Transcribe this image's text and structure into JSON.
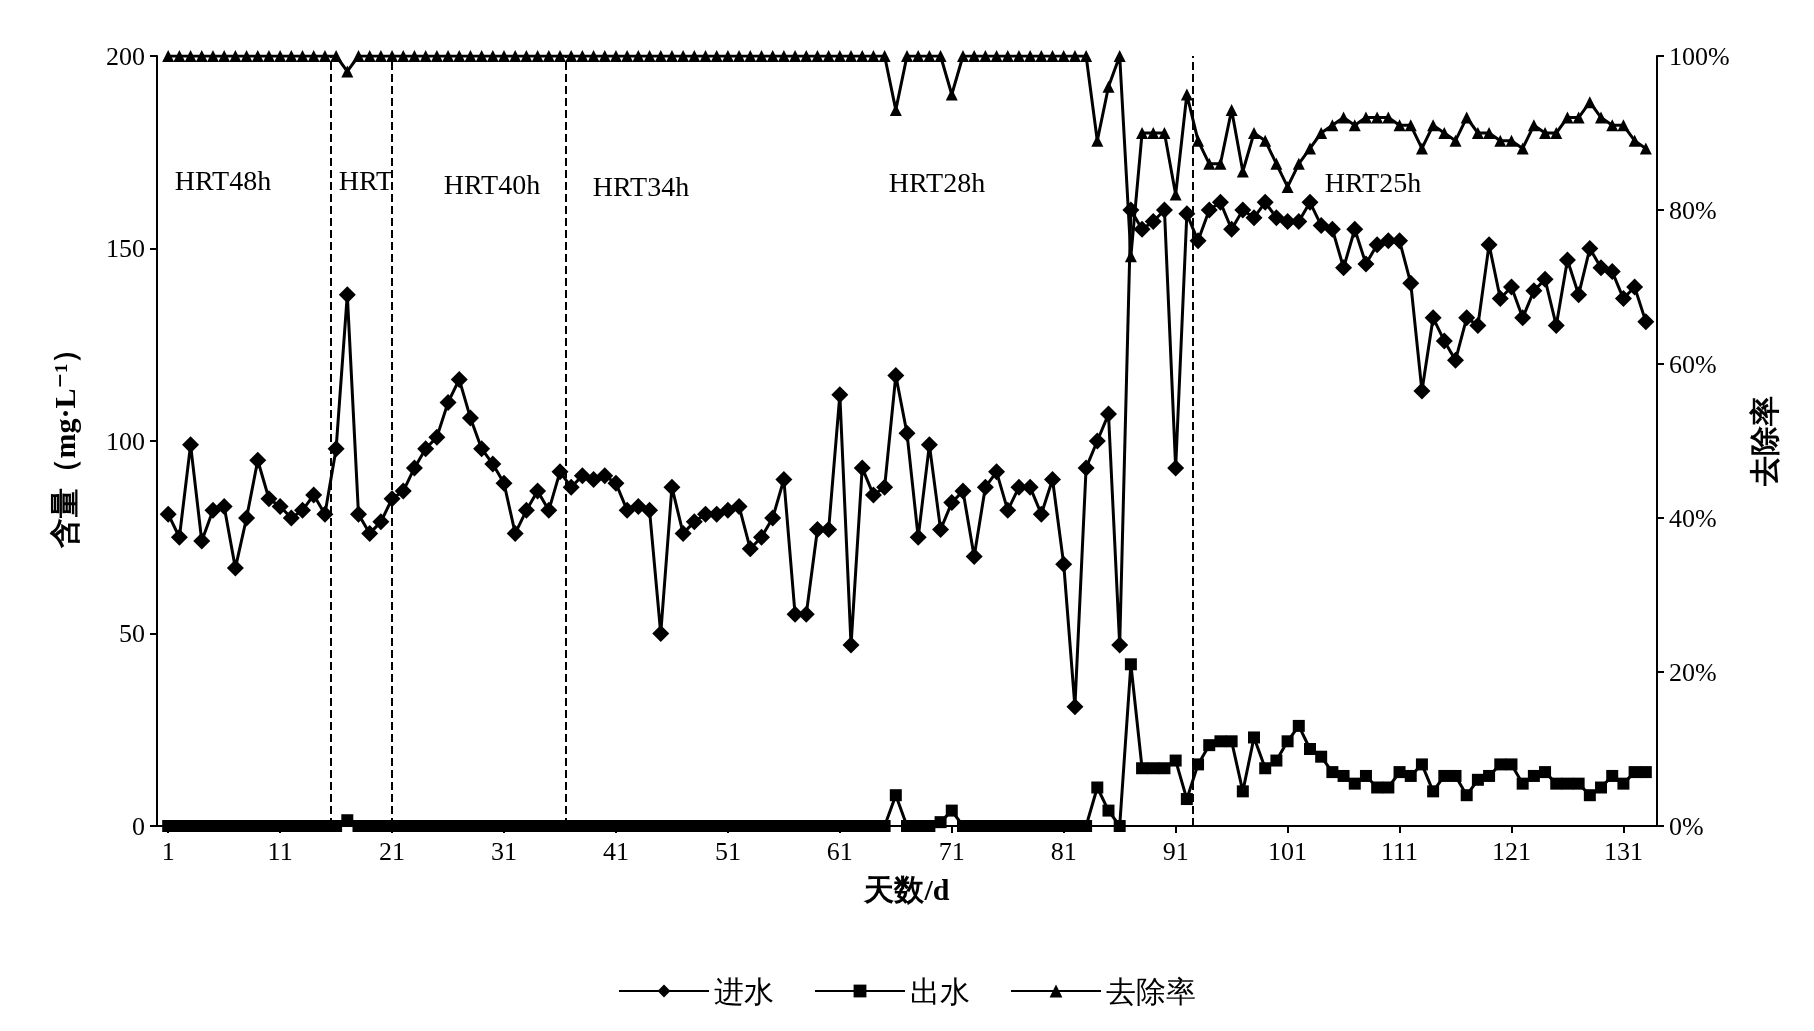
{
  "chart_data": {
    "type": "line",
    "xlabel": "天数/d",
    "ylabel": "含量（mg·L⁻¹）",
    "y2label": "去除率",
    "x": [
      1,
      2,
      3,
      4,
      5,
      6,
      7,
      8,
      9,
      10,
      11,
      12,
      13,
      14,
      15,
      16,
      17,
      18,
      19,
      20,
      21,
      22,
      23,
      24,
      25,
      26,
      27,
      28,
      29,
      30,
      31,
      32,
      33,
      34,
      35,
      36,
      37,
      38,
      39,
      40,
      41,
      42,
      43,
      44,
      45,
      46,
      47,
      48,
      49,
      50,
      51,
      52,
      53,
      54,
      55,
      56,
      57,
      58,
      59,
      60,
      61,
      62,
      63,
      64,
      65,
      66,
      67,
      68,
      69,
      70,
      71,
      72,
      73,
      74,
      75,
      76,
      77,
      78,
      79,
      80,
      81,
      82,
      83,
      84,
      85,
      86,
      87,
      88,
      89,
      90,
      91,
      92,
      93,
      94,
      95,
      96,
      97,
      98,
      99,
      100,
      101,
      102,
      103,
      104,
      105,
      106,
      107,
      108,
      109,
      110,
      111,
      112,
      113,
      114,
      115,
      116,
      117,
      118,
      119,
      120,
      121,
      122,
      123,
      124,
      125,
      126,
      127,
      128,
      129,
      130,
      131,
      132,
      133
    ],
    "series": [
      {
        "name": "进水",
        "color": "#000000",
        "marker": "diamond",
        "values": [
          81,
          75,
          99,
          74,
          82,
          83,
          67,
          80,
          95,
          85,
          83,
          80,
          82,
          86,
          81,
          98,
          138,
          81,
          76,
          79,
          85,
          87,
          93,
          98,
          101,
          110,
          116,
          106,
          98,
          94,
          89,
          76,
          82,
          87,
          82,
          92,
          88,
          91,
          90,
          91,
          89,
          82,
          83,
          82,
          50,
          88,
          76,
          79,
          81,
          81,
          82,
          83,
          72,
          75,
          80,
          90,
          55,
          55,
          77,
          77,
          112,
          47,
          93,
          86,
          88,
          117,
          102,
          75,
          99,
          77,
          84,
          87,
          70,
          88,
          92,
          82,
          88,
          88,
          81,
          90,
          68,
          31,
          93,
          100,
          107,
          47,
          160,
          155,
          157,
          160,
          93,
          159,
          152,
          160,
          162,
          155,
          160,
          158,
          162,
          158,
          157,
          157,
          162,
          156,
          155,
          145,
          155,
          146,
          151,
          152,
          152,
          141,
          113,
          132,
          126,
          121,
          132,
          130,
          151,
          137,
          140,
          132,
          139,
          142,
          130,
          147,
          138,
          150,
          145,
          144,
          137,
          140,
          131
        ]
      },
      {
        "name": "出水",
        "color": "#000000",
        "marker": "square",
        "values": [
          0,
          0,
          0,
          0,
          0,
          0,
          0,
          0,
          0,
          0,
          0,
          0,
          0,
          0,
          0,
          0,
          1.5,
          0,
          0,
          0,
          0,
          0,
          0,
          0,
          0,
          0,
          0,
          0,
          0,
          0,
          0,
          0,
          0,
          0,
          0,
          0,
          0,
          0,
          0,
          0,
          0,
          0,
          0,
          0,
          0,
          0,
          0,
          0,
          0,
          0,
          0,
          0,
          0,
          0,
          0,
          0,
          0,
          0,
          0,
          0,
          0,
          0,
          0,
          0,
          0,
          8,
          0,
          0,
          0,
          1,
          4,
          0,
          0,
          0,
          0,
          0,
          0,
          0,
          0,
          0,
          0,
          0,
          0,
          10,
          4,
          0,
          42,
          15,
          15,
          15,
          17,
          7,
          16,
          21,
          22,
          22,
          9,
          23,
          15,
          17,
          22,
          26,
          20,
          18,
          14,
          13,
          11,
          13,
          10,
          10,
          14,
          13,
          16,
          9,
          13,
          13,
          8,
          12,
          13,
          16,
          16,
          11,
          13,
          14,
          11,
          11,
          11,
          8,
          10,
          13,
          11,
          14,
          14
        ]
      },
      {
        "name": "去除率",
        "color": "#000000",
        "marker": "triangle",
        "axis": "y2",
        "values": [
          100,
          100,
          100,
          100,
          100,
          100,
          100,
          100,
          100,
          100,
          100,
          100,
          100,
          100,
          100,
          100,
          98,
          100,
          100,
          100,
          100,
          100,
          100,
          100,
          100,
          100,
          100,
          100,
          100,
          100,
          100,
          100,
          100,
          100,
          100,
          100,
          100,
          100,
          100,
          100,
          100,
          100,
          100,
          100,
          100,
          100,
          100,
          100,
          100,
          100,
          100,
          100,
          100,
          100,
          100,
          100,
          100,
          100,
          100,
          100,
          100,
          100,
          100,
          100,
          100,
          93,
          100,
          100,
          100,
          100,
          95,
          100,
          100,
          100,
          100,
          100,
          100,
          100,
          100,
          100,
          100,
          100,
          100,
          89,
          96,
          100,
          74,
          90,
          90,
          90,
          82,
          95,
          89,
          86,
          86,
          93,
          85,
          90,
          89,
          86,
          83,
          86,
          88,
          90,
          91,
          92,
          91,
          92,
          92,
          92,
          91,
          91,
          88,
          91,
          90,
          89,
          92,
          90,
          90,
          89,
          89,
          88,
          91,
          90,
          90,
          92,
          92,
          94,
          92,
          91,
          91,
          89,
          88
        ]
      }
    ],
    "xlim": [
      0,
      134
    ],
    "xticks": [
      1,
      11,
      21,
      31,
      41,
      51,
      61,
      71,
      81,
      91,
      101,
      111,
      121,
      131
    ],
    "ylim": [
      0,
      200
    ],
    "yticks": [
      0,
      50,
      100,
      150,
      200
    ],
    "y2lim": [
      0,
      100
    ],
    "y2ticks": [
      {
        "value": 0,
        "label": "0%"
      },
      {
        "value": 20,
        "label": "20%"
      },
      {
        "value": 40,
        "label": "40%"
      },
      {
        "value": 60,
        "label": "60%"
      },
      {
        "value": 80,
        "label": "80%"
      },
      {
        "value": 100,
        "label": "100%"
      }
    ],
    "ref_lines": [
      {
        "axis": "x",
        "value": 15.5,
        "line_style": "dashed",
        "color": "#000000"
      },
      {
        "axis": "x",
        "value": 21,
        "line_style": "dashed",
        "color": "#000000"
      },
      {
        "axis": "x",
        "value": 36.5,
        "line_style": "dashed",
        "color": "#000000"
      },
      {
        "axis": "x",
        "value": 92.5,
        "line_style": "dashed",
        "color": "#000000"
      }
    ],
    "annotations": [
      "HRT48h",
      "HRT",
      "HRT40h",
      "HRT34h",
      "HRT28h",
      "HRT25h"
    ],
    "legend": "bottom",
    "grid": false,
    "line_style": "solid"
  }
}
